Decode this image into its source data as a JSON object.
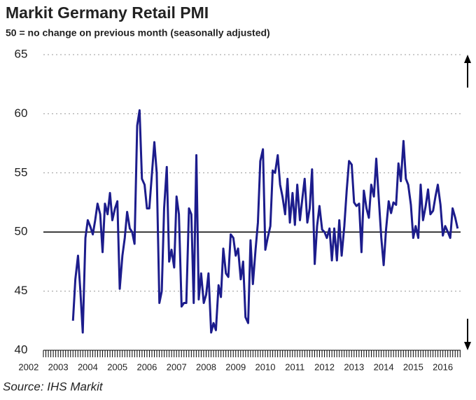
{
  "chart_data": {
    "type": "line",
    "title": "Markit Germany Retail PMI",
    "subtitle": "50 = no change on previous month (seasonally adjusted)",
    "source": "Source: IHS Markit",
    "color": "#1c1c8c",
    "grid": true,
    "hline": 50,
    "xlim": [
      2002.5,
      2016.6
    ],
    "xticks": [
      2002,
      2003,
      2004,
      2005,
      2006,
      2007,
      2008,
      2009,
      2010,
      2011,
      2012,
      2013,
      2014,
      2015,
      2016
    ],
    "ylim": [
      40,
      65
    ],
    "yticks": [
      40,
      45,
      50,
      55,
      60,
      65
    ],
    "x": [
      2003.5,
      2003.58,
      2003.67,
      2003.75,
      2003.83,
      2003.92,
      2004,
      2004.08,
      2004.17,
      2004.25,
      2004.33,
      2004.42,
      2004.5,
      2004.58,
      2004.67,
      2004.75,
      2004.83,
      2004.92,
      2005,
      2005.08,
      2005.17,
      2005.25,
      2005.33,
      2005.42,
      2005.5,
      2005.58,
      2005.67,
      2005.75,
      2005.83,
      2005.92,
      2006,
      2006.08,
      2006.17,
      2006.25,
      2006.33,
      2006.42,
      2006.5,
      2006.58,
      2006.67,
      2006.75,
      2006.83,
      2006.92,
      2007,
      2007.08,
      2007.17,
      2007.25,
      2007.33,
      2007.42,
      2007.5,
      2007.58,
      2007.67,
      2007.75,
      2007.83,
      2007.92,
      2008,
      2008.08,
      2008.17,
      2008.25,
      2008.33,
      2008.42,
      2008.5,
      2008.58,
      2008.67,
      2008.75,
      2008.83,
      2008.92,
      2009,
      2009.08,
      2009.17,
      2009.25,
      2009.33,
      2009.42,
      2009.5,
      2009.58,
      2009.67,
      2009.75,
      2009.83,
      2009.92,
      2010,
      2010.08,
      2010.17,
      2010.25,
      2010.33,
      2010.42,
      2010.5,
      2010.58,
      2010.67,
      2010.75,
      2010.83,
      2010.92,
      2011,
      2011.08,
      2011.17,
      2011.25,
      2011.33,
      2011.42,
      2011.5,
      2011.58,
      2011.67,
      2011.75,
      2011.83,
      2011.92,
      2012,
      2012.08,
      2012.17,
      2012.25,
      2012.33,
      2012.42,
      2012.5,
      2012.58,
      2012.67,
      2012.75,
      2012.83,
      2012.92,
      2013,
      2013.08,
      2013.17,
      2013.25,
      2013.33,
      2013.42,
      2013.5,
      2013.58,
      2013.67,
      2013.75,
      2013.83,
      2013.92,
      2014,
      2014.08,
      2014.17,
      2014.25,
      2014.33,
      2014.42,
      2014.5,
      2014.58,
      2014.67,
      2014.75,
      2014.83,
      2014.92,
      2015,
      2015.08,
      2015.17,
      2015.25,
      2015.33,
      2015.42,
      2015.5,
      2015.58,
      2015.67,
      2015.75,
      2015.83,
      2015.92,
      2016,
      2016.08,
      2016.17,
      2016.25,
      2016.33,
      2016.42,
      2016.5
    ],
    "values": [
      42.5,
      46,
      48,
      45,
      41.5,
      49.5,
      51,
      50.5,
      49.8,
      51,
      52.4,
      51.5,
      48.3,
      52.4,
      51.5,
      53.3,
      51,
      52,
      52.6,
      45.2,
      48,
      49.5,
      51.7,
      50.3,
      50,
      49,
      59,
      60.3,
      54.5,
      54,
      52,
      52,
      55,
      57.6,
      55,
      44,
      45,
      52,
      55.5,
      47.5,
      48.5,
      47,
      53,
      51.5,
      43.7,
      44,
      44,
      52,
      51.5,
      44,
      56.5,
      44.3,
      46.5,
      44,
      44.7,
      46.5,
      41.5,
      42.3,
      41.7,
      45.5,
      44.5,
      48.6,
      46.5,
      46.2,
      49.8,
      49.5,
      48,
      48.6,
      46,
      47.5,
      42.8,
      42.3,
      49.3,
      45.6,
      48.5,
      50.8,
      56,
      57,
      48.5,
      49.5,
      50.5,
      55.2,
      55,
      56.5,
      54,
      53,
      51.5,
      54.5,
      50.8,
      53.3,
      50.6,
      54,
      51,
      52.8,
      54.5,
      50.8,
      52,
      55.3,
      47.3,
      50.5,
      52.2,
      50.2,
      50,
      49.5,
      50.3,
      47.6,
      50.3,
      47.6,
      51,
      48,
      50.5,
      53.5,
      56,
      55.7,
      52.5,
      52.2,
      52.4,
      48.3,
      53.5,
      52,
      51.2,
      54,
      53,
      56.2,
      53,
      49.5,
      47.2,
      50.2,
      52.6,
      51.6,
      52.5,
      52.3,
      55.8,
      54.3,
      57.7,
      54.5,
      54,
      52.3,
      49.5,
      50.5,
      49.5,
      54,
      51,
      52.2,
      53.6,
      51.5,
      51.8,
      53,
      54,
      52.3,
      49.7,
      50.5,
      50,
      49.5,
      52,
      51.2,
      50.3
    ]
  }
}
